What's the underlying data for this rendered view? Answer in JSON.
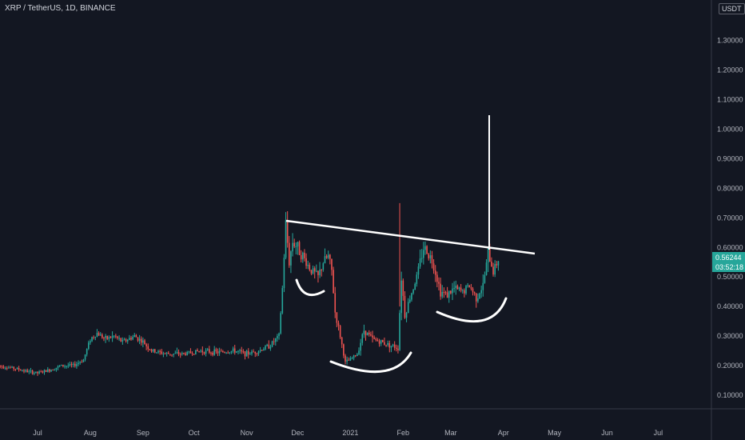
{
  "header": {
    "symbol_title": "XRP / TetherUS, 1D, BINANCE",
    "currency_badge": "USDT"
  },
  "price_tag": {
    "price": "0.56244",
    "countdown": "03:52:18",
    "color": "#26a69a"
  },
  "colors": {
    "background": "#131722",
    "up": "#26a69a",
    "down": "#ef5350",
    "drawing": "#ffffff",
    "axis_text": "#b2b5be",
    "axis_line": "#363a45"
  },
  "chart_data": {
    "type": "candlestick",
    "title": "XRP / TetherUS, 1D, BINANCE",
    "ylabel": "USDT",
    "y_ticks": [
      "1.30000",
      "1.20000",
      "1.10000",
      "1.00000",
      "0.90000",
      "0.80000",
      "0.70000",
      "0.60000",
      "0.50000",
      "0.40000",
      "0.30000",
      "0.20000",
      "0.10000"
    ],
    "y_tick_values": [
      1.3,
      1.2,
      1.1,
      1.0,
      0.9,
      0.8,
      0.7,
      0.6,
      0.5,
      0.4,
      0.3,
      0.2,
      0.1
    ],
    "x_ticks": [
      "Jul",
      "Aug",
      "Sep",
      "Oct",
      "Nov",
      "Dec",
      "2021",
      "Feb",
      "Mar",
      "Apr",
      "May",
      "Jun",
      "Jul"
    ],
    "x_tick_dates": [
      "2020-07-01",
      "2020-08-01",
      "2020-09-01",
      "2020-10-01",
      "2020-11-01",
      "2020-12-01",
      "2021-01-01",
      "2021-02-01",
      "2021-03-01",
      "2021-04-01",
      "2021-05-01",
      "2021-06-01",
      "2021-07-01"
    ],
    "ylim": [
      0.04,
      1.45
    ],
    "grid": false,
    "last_price": 0.56244,
    "price_path": [
      [
        "2020-06-08",
        0.2
      ],
      [
        "2020-06-18",
        0.19
      ],
      [
        "2020-06-25",
        0.18
      ],
      [
        "2020-07-01",
        0.175
      ],
      [
        "2020-07-08",
        0.185
      ],
      [
        "2020-07-15",
        0.2
      ],
      [
        "2020-07-22",
        0.2
      ],
      [
        "2020-07-28",
        0.22
      ],
      [
        "2020-08-01",
        0.29
      ],
      [
        "2020-08-05",
        0.31
      ],
      [
        "2020-08-10",
        0.29
      ],
      [
        "2020-08-15",
        0.3
      ],
      [
        "2020-08-20",
        0.28
      ],
      [
        "2020-08-27",
        0.3
      ],
      [
        "2020-09-01",
        0.28
      ],
      [
        "2020-09-06",
        0.25
      ],
      [
        "2020-09-15",
        0.24
      ],
      [
        "2020-09-25",
        0.24
      ],
      [
        "2020-10-05",
        0.25
      ],
      [
        "2020-10-15",
        0.245
      ],
      [
        "2020-10-25",
        0.25
      ],
      [
        "2020-11-01",
        0.24
      ],
      [
        "2020-11-08",
        0.25
      ],
      [
        "2020-11-15",
        0.27
      ],
      [
        "2020-11-20",
        0.3
      ],
      [
        "2020-11-22",
        0.46
      ],
      [
        "2020-11-24",
        0.68
      ],
      [
        "2020-11-26",
        0.55
      ],
      [
        "2020-11-28",
        0.62
      ],
      [
        "2020-12-01",
        0.6
      ],
      [
        "2020-12-05",
        0.56
      ],
      [
        "2020-12-08",
        0.53
      ],
      [
        "2020-12-13",
        0.5
      ],
      [
        "2020-12-16",
        0.55
      ],
      [
        "2020-12-19",
        0.57
      ],
      [
        "2020-12-21",
        0.52
      ],
      [
        "2020-12-23",
        0.38
      ],
      [
        "2020-12-26",
        0.3
      ],
      [
        "2020-12-29",
        0.21
      ],
      [
        "2021-01-01",
        0.22
      ],
      [
        "2021-01-05",
        0.24
      ],
      [
        "2021-01-09",
        0.32
      ],
      [
        "2021-01-14",
        0.29
      ],
      [
        "2021-01-19",
        0.28
      ],
      [
        "2021-01-24",
        0.27
      ],
      [
        "2021-01-29",
        0.26
      ],
      [
        "2021-01-31",
        0.5
      ],
      [
        "2021-02-02",
        0.37
      ],
      [
        "2021-02-05",
        0.43
      ],
      [
        "2021-02-09",
        0.5
      ],
      [
        "2021-02-13",
        0.6
      ],
      [
        "2021-02-16",
        0.58
      ],
      [
        "2021-02-19",
        0.54
      ],
      [
        "2021-02-23",
        0.45
      ],
      [
        "2021-02-27",
        0.44
      ],
      [
        "2021-03-03",
        0.46
      ],
      [
        "2021-03-08",
        0.45
      ],
      [
        "2021-03-12",
        0.47
      ],
      [
        "2021-03-16",
        0.43
      ],
      [
        "2021-03-20",
        0.47
      ],
      [
        "2021-03-23",
        0.58
      ],
      [
        "2021-03-26",
        0.52
      ],
      [
        "2021-03-29",
        0.56
      ]
    ]
  }
}
